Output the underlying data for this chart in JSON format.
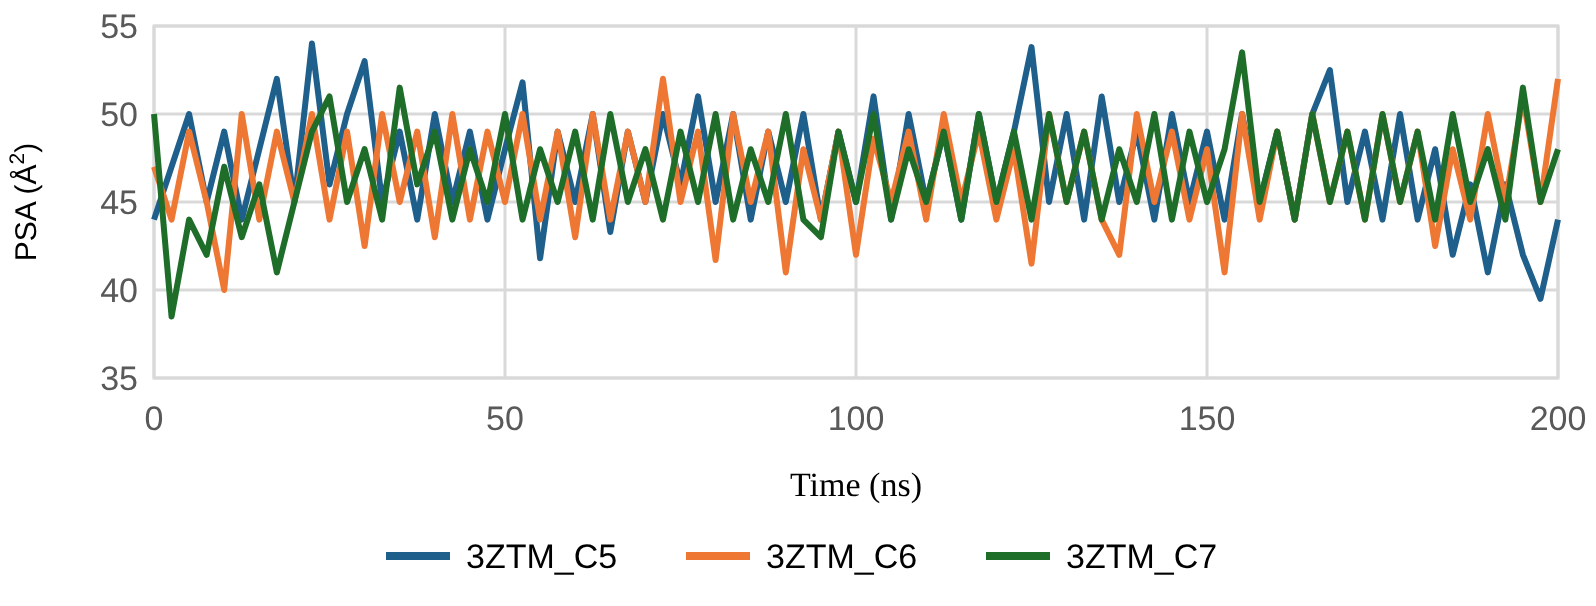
{
  "chart_data": {
    "type": "line",
    "xlabel": "Time (ns)",
    "ylabel": "PSA (Å$^{2}$)",
    "x": [
      0,
      2.5,
      5,
      7.5,
      10,
      12.5,
      15,
      17.5,
      20,
      22.5,
      25,
      27.5,
      30,
      32.5,
      35,
      37.5,
      40,
      42.5,
      45,
      47.5,
      50,
      52.5,
      55,
      57.5,
      60,
      62.5,
      65,
      67.5,
      70,
      72.5,
      75,
      77.5,
      80,
      82.5,
      85,
      87.5,
      90,
      92.5,
      95,
      97.5,
      100,
      102.5,
      105,
      107.5,
      110,
      112.5,
      115,
      117.5,
      120,
      122.5,
      125,
      127.5,
      130,
      132.5,
      135,
      137.5,
      140,
      142.5,
      145,
      147.5,
      150,
      152.5,
      155,
      157.5,
      160,
      162.5,
      165,
      167.5,
      170,
      172.5,
      175,
      177.5,
      180,
      182.5,
      185,
      187.5,
      190,
      192.5,
      195,
      197.5,
      200
    ],
    "series": [
      {
        "name": "3ZTM_C5",
        "color": "#1f5f8b",
        "values": [
          44,
          47,
          50,
          45,
          49,
          44,
          48,
          52,
          45,
          54,
          46,
          50,
          53,
          45,
          49,
          44,
          50,
          45,
          49,
          44,
          48,
          51.8,
          41.8,
          49,
          45,
          50,
          43.3,
          49,
          45,
          50,
          46,
          51,
          45,
          50,
          44,
          49,
          45,
          50,
          44,
          49,
          45,
          51,
          44,
          50,
          45,
          49,
          44,
          50,
          45,
          49,
          53.8,
          45,
          50,
          44,
          51,
          45,
          49,
          44,
          50,
          45,
          49,
          44,
          50,
          45,
          49,
          44,
          50,
          52.5,
          45,
          49,
          44,
          50,
          44,
          48,
          42,
          46,
          41,
          46,
          42,
          39.5,
          44
        ]
      },
      {
        "name": "3ZTM_C6",
        "color": "#ee7733",
        "values": [
          47,
          44,
          49,
          45,
          40,
          50,
          44,
          49,
          45,
          50,
          44,
          49,
          42.5,
          50,
          45,
          49,
          43,
          50,
          44,
          49,
          45,
          50,
          44,
          49,
          43,
          50,
          44,
          49,
          45,
          52,
          45,
          49,
          41.7,
          50,
          45,
          49,
          41,
          48,
          44,
          49,
          42,
          48.6,
          45,
          49,
          44,
          50,
          45,
          49,
          44,
          48,
          41.5,
          50,
          45,
          49,
          44,
          42,
          50,
          45,
          49,
          44,
          48,
          41,
          50,
          44,
          49,
          44,
          50,
          45,
          49,
          44,
          50,
          45,
          49,
          42.5,
          48,
          44,
          50,
          45,
          51,
          45,
          52
        ]
      },
      {
        "name": "3ZTM_C7",
        "color": "#1e6e2a",
        "values": [
          50,
          38.5,
          44,
          42,
          47,
          43,
          46,
          41,
          45,
          49,
          51,
          45,
          48,
          44,
          51.5,
          46,
          49,
          44,
          48,
          45,
          50,
          44,
          48,
          45,
          49,
          44,
          50,
          45,
          48,
          44,
          49,
          45,
          50,
          44,
          48,
          45,
          50,
          44,
          43,
          49,
          45,
          50,
          44,
          48,
          45,
          49,
          44,
          50,
          45,
          49,
          44,
          50,
          45,
          49,
          44,
          48,
          45,
          50,
          44,
          49,
          45,
          48,
          53.5,
          45,
          49,
          44,
          50,
          45,
          49,
          44,
          50,
          45,
          49,
          44,
          50,
          45,
          48,
          44,
          51.5,
          45,
          48
        ]
      }
    ],
    "xlim": [
      0,
      200
    ],
    "xticks": [
      0,
      50,
      100,
      150,
      200
    ],
    "ylim": [
      35,
      55
    ],
    "yticks": [
      35,
      40,
      45,
      50,
      55
    ],
    "grid": true,
    "legend": "bottom",
    "line_style": "solid"
  }
}
